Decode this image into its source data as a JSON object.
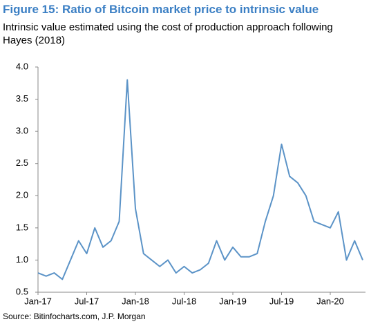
{
  "chart_data": {
    "type": "line",
    "title": "Figure 15: Ratio of Bitcoin market price to intrinsic value",
    "subtitle": "Intrinsic value estimated using the cost of production approach following Hayes (2018)",
    "source": "Source: Bitinfocharts.com, J.P. Morgan",
    "categories": [
      "Jan-17",
      null,
      null,
      null,
      null,
      null,
      "Jul-17",
      null,
      null,
      null,
      null,
      null,
      "Jan-18",
      null,
      null,
      null,
      null,
      null,
      "Jul-18",
      null,
      null,
      null,
      null,
      null,
      "Jan-19",
      null,
      null,
      null,
      null,
      null,
      "Jul-19",
      null,
      null,
      null,
      null,
      null,
      "Jan-20",
      null,
      null,
      null,
      null
    ],
    "series": [
      {
        "name": "Ratio",
        "color": "#5b93c7",
        "values": [
          0.8,
          0.75,
          0.8,
          0.7,
          1.0,
          1.3,
          1.1,
          1.5,
          1.2,
          1.3,
          1.6,
          3.8,
          1.8,
          1.1,
          1.0,
          0.9,
          1.0,
          0.8,
          0.9,
          0.8,
          0.85,
          0.95,
          1.3,
          1.0,
          1.2,
          1.05,
          1.05,
          1.1,
          1.6,
          2.0,
          2.8,
          2.3,
          2.2,
          2.0,
          1.6,
          1.55,
          1.5,
          1.75,
          1.0,
          1.3,
          1.0
        ]
      }
    ],
    "ylim": [
      0.5,
      4.0
    ],
    "yticks": [
      {
        "value": 0.5,
        "label": "0.5"
      },
      {
        "value": 1.0,
        "label": "1.0"
      },
      {
        "value": 1.5,
        "label": "1.5"
      },
      {
        "value": 2.0,
        "label": "2.0"
      },
      {
        "value": 2.5,
        "label": "2.5"
      },
      {
        "value": 3.0,
        "label": "3.0"
      },
      {
        "value": 3.5,
        "label": "3.5"
      },
      {
        "value": 4.0,
        "label": "4.0"
      }
    ],
    "grid": false
  }
}
